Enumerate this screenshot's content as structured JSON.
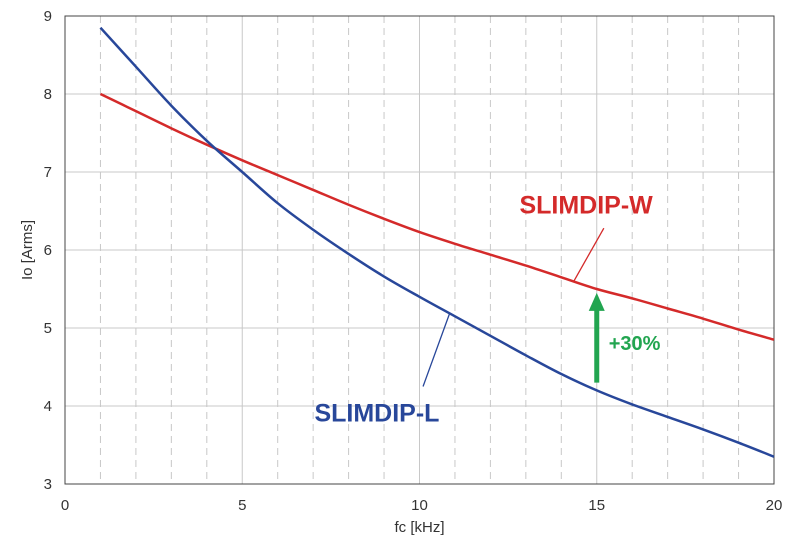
{
  "chart_data": {
    "type": "line",
    "title": "",
    "xlabel": "fc [kHz]",
    "ylabel": "Io [Arms]",
    "xlim": [
      0,
      20
    ],
    "ylim": [
      3,
      9
    ],
    "x_ticks": [
      0,
      5,
      10,
      15,
      20
    ],
    "y_ticks": [
      3,
      4,
      5,
      6,
      7,
      8,
      9
    ],
    "x_minor_gridlines": [
      1,
      2,
      3,
      4,
      6,
      7,
      8,
      9,
      11,
      12,
      13,
      14,
      16,
      17,
      18,
      19
    ],
    "grid": "on",
    "legend": "none",
    "series": [
      {
        "name": "SLIMDIP-W",
        "color": "#d42a2a",
        "x": [
          1,
          2,
          3,
          4,
          5,
          6,
          7,
          8,
          9,
          10,
          11,
          12,
          13,
          14,
          15,
          16,
          17,
          18,
          19,
          20
        ],
        "y": [
          8.0,
          7.78,
          7.56,
          7.35,
          7.15,
          6.96,
          6.77,
          6.58,
          6.4,
          6.23,
          6.08,
          5.94,
          5.8,
          5.65,
          5.5,
          5.38,
          5.25,
          5.12,
          4.98,
          4.85
        ]
      },
      {
        "name": "SLIMDIP-L",
        "color": "#28479a",
        "x": [
          1,
          2,
          3,
          4,
          5,
          6,
          7,
          8,
          9,
          10,
          11,
          12,
          13,
          14,
          15,
          16,
          17,
          18,
          19,
          20
        ],
        "y": [
          8.85,
          8.35,
          7.85,
          7.4,
          7.0,
          6.6,
          6.26,
          5.95,
          5.66,
          5.4,
          5.15,
          4.9,
          4.65,
          4.41,
          4.2,
          4.02,
          3.86,
          3.7,
          3.53,
          3.35
        ]
      }
    ],
    "annotations": [
      {
        "text": "+30%",
        "color": "#22a550",
        "arrow_x": 15,
        "arrow_from": 4.3,
        "arrow_to": 5.45
      }
    ]
  }
}
